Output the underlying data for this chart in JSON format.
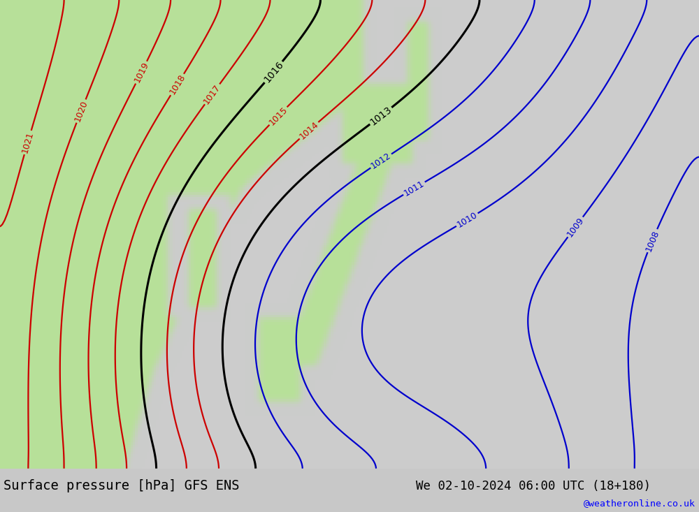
{
  "title_left": "Surface pressure [hPa] GFS ENS",
  "title_right": "We 02-10-2024 06:00 UTC (18+180)",
  "credit": "@weatheronline.co.uk",
  "fig_width": 10.0,
  "fig_height": 7.33,
  "dpi": 100,
  "gray_bg": "#d0d0d0",
  "bar_bg": "#c8c8c8",
  "green_land": [
    0.72,
    0.88,
    0.6
  ],
  "gray_sea": [
    0.8,
    0.8,
    0.8
  ]
}
